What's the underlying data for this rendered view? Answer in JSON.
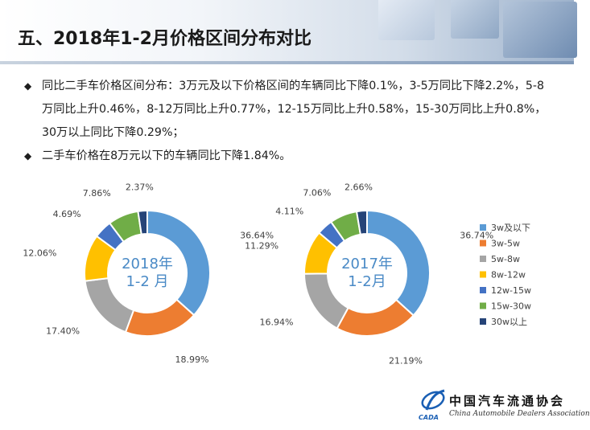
{
  "slide": {
    "title": "五、2018年1-2月价格区间分布对比",
    "bullets": [
      "同比二手车价格区间分布：3万元及以下价格区间的车辆同比下降0.1%，3-5万同比下降2.2%，5-8万同比上升0.46%，8-12万同比上升0.77%，12-15万同比上升0.58%，15-30万同比上升0.8%，30万以上同比下降0.29%；",
      "二手车价格在8万元以下的车辆同比下降1.84%。"
    ],
    "bullet_symbol": "◆"
  },
  "logo": {
    "name": "中国汽车流通协会",
    "subtitle": "China Automobile Dealers Association",
    "abbr": "CADA"
  },
  "colors": {
    "series": [
      "#5b9bd5",
      "#ed7d31",
      "#a5a5a5",
      "#ffc000",
      "#4472c4",
      "#70ad47",
      "#264478"
    ],
    "header_gradient_end": "#9db2cc"
  },
  "chart_data": [
    {
      "type": "pie",
      "subtype": "donut",
      "center_label": "2018年\n1-2 月",
      "categories": [
        "3w及以下",
        "3w-5w",
        "5w-8w",
        "8w-12w",
        "12w-15w",
        "15w-30w",
        "30w以上"
      ],
      "values": [
        36.64,
        18.99,
        17.4,
        12.06,
        4.69,
        7.86,
        2.37
      ],
      "data_labels": [
        "36.64%",
        "18.99%",
        "17.40%",
        "12.06%",
        "4.69%",
        "7.86%",
        "2.37%"
      ]
    },
    {
      "type": "pie",
      "subtype": "donut",
      "center_label": "2017年\n1-2月",
      "categories": [
        "3w及以下",
        "3w-5w",
        "5w-8w",
        "8w-12w",
        "12w-15w",
        "15w-30w",
        "30w以上"
      ],
      "values": [
        36.74,
        21.19,
        16.94,
        11.29,
        4.11,
        7.06,
        2.66
      ],
      "data_labels": [
        "36.74%",
        "21.19%",
        "16.94%",
        "11.29%",
        "4.11%",
        "7.06%",
        "2.66%"
      ],
      "legend": [
        "3w及以下",
        "3w-5w",
        "5w-8w",
        "8w-12w",
        "12w-15w",
        "15w-30w",
        "30w以上"
      ],
      "legend_position": "right"
    }
  ]
}
